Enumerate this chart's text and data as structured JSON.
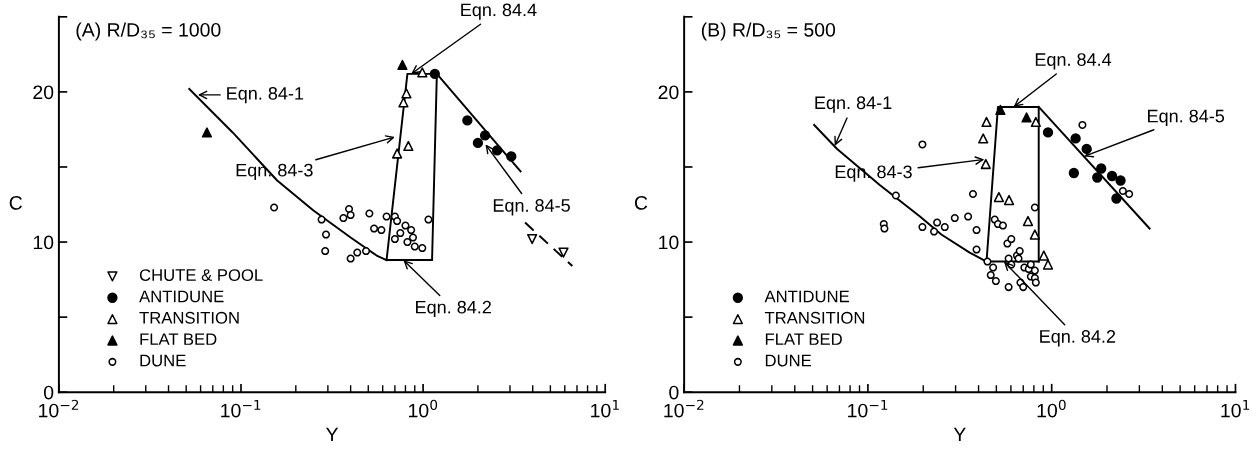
{
  "chart_data": [
    {
      "type": "scatter",
      "title": "(A) R/D₃₅ = 1000",
      "xlabel": "Y",
      "ylabel": "C",
      "log": "x",
      "xlim": [
        0.01,
        10
      ],
      "ylim": [
        0,
        25
      ],
      "xticks": [
        {
          "value": 0.01,
          "label": "10$^{−2}$"
        },
        {
          "value": 0.1,
          "label": "10$^{−1}$"
        },
        {
          "value": 1,
          "label": "10$^{0}$"
        },
        {
          "value": 10,
          "label": "10$^{1}$"
        }
      ],
      "yticks": [
        0,
        {
          "value": 5,
          "label": null
        },
        10,
        {
          "value": 15,
          "label": null
        },
        20,
        {
          "value": 25,
          "label": null
        }
      ],
      "grid": false,
      "legend": "lower left",
      "series": [
        {
          "name": "CHUTE & POOL",
          "marker": "triangle_down_open",
          "color": "#000000",
          "x": [
            3.97,
            5.9
          ],
          "values": [
            10.2,
            9.3
          ]
        },
        {
          "name": "ANTIDUNE",
          "marker": "circle",
          "color": "#000000",
          "x": [
            1.16,
            1.75,
            2.19,
            2.0,
            2.55,
            3.05
          ],
          "values": [
            21.2,
            18.1,
            17.1,
            16.6,
            16.1,
            15.7
          ]
        },
        {
          "name": "TRANSITION",
          "marker": "triangle_open",
          "color": "#000000",
          "x": [
            0.99,
            0.81,
            0.78,
            0.72,
            0.83
          ],
          "values": [
            21.3,
            19.9,
            19.3,
            15.9,
            16.4
          ]
        },
        {
          "name": "FLAT BED",
          "marker": "triangle",
          "color": "#000000",
          "x": [
            0.065,
            0.77
          ],
          "values": [
            17.3,
            21.8
          ]
        },
        {
          "name": "DUNE",
          "marker": "circle_open",
          "color": "#000000",
          "x": [
            0.152,
            0.277,
            0.293,
            0.29,
            0.365,
            0.392,
            0.4,
            0.4,
            0.435,
            0.486,
            0.507,
            0.538,
            0.59,
            0.63,
            0.7,
            0.72,
            0.7,
            0.75,
            0.8,
            0.86,
            0.88,
            0.82,
            0.9,
            0.99,
            1.07
          ],
          "values": [
            12.3,
            11.5,
            10.5,
            9.4,
            11.6,
            12.2,
            11.8,
            8.9,
            9.3,
            9.4,
            11.9,
            10.9,
            10.8,
            11.7,
            11.7,
            11.4,
            10.2,
            10.6,
            11.1,
            10.8,
            10.3,
            10.0,
            9.7,
            9.6,
            11.5
          ]
        },
        {
          "type": "line",
          "marker": "none",
          "line_style": "solid",
          "color": "#000000",
          "x": [
            0.052,
            0.09,
            0.158,
            0.25,
            0.4,
            0.556,
            0.63,
            1.12
          ],
          "values": [
            20.2,
            17.3,
            14.1,
            12.1,
            10.3,
            9.1,
            8.8,
            8.8
          ]
        },
        {
          "type": "line",
          "marker": "none",
          "line_style": "solid",
          "color": "#000000",
          "x": [
            0.63,
            0.82,
            1.19,
            1.12
          ],
          "values": [
            8.8,
            21.2,
            21.2,
            8.8
          ]
        },
        {
          "type": "line",
          "marker": "none",
          "line_style": "solid",
          "color": "#000000",
          "x": [
            1.19,
            3.43
          ],
          "values": [
            21.2,
            14.7
          ]
        },
        {
          "type": "line",
          "marker": "none",
          "line_style": "dashed",
          "color": "#000000",
          "x": [
            3.63,
            6.6
          ],
          "values": [
            11.3,
            8.4
          ]
        }
      ],
      "annotations": [
        {
          "text": "Eqn. 84-1",
          "x": 0.058,
          "y": 19.8
        },
        {
          "text": "Eqn. 84-3",
          "x": 0.7,
          "y": 17.0
        },
        {
          "text": "Eqn. 84.4",
          "x": 0.86,
          "y": 21.2
        },
        {
          "text": "Eqn. 84-5",
          "x": 2.2,
          "y": 16.5
        },
        {
          "text": "Eqn. 84.2",
          "x": 0.78,
          "y": 8.8
        }
      ]
    },
    {
      "type": "scatter",
      "title": "(B) R/D₃₅ = 500",
      "xlabel": "Y",
      "ylabel": "C",
      "log": "x",
      "xlim": [
        0.01,
        10
      ],
      "ylim": [
        0,
        25
      ],
      "xticks": [
        {
          "value": 0.01,
          "label": "10$^{−2}$"
        },
        {
          "value": 0.1,
          "label": "10$^{−1}$"
        },
        {
          "value": 1,
          "label": "10$^{0}$"
        },
        {
          "value": 10,
          "label": "10$^{1}$"
        }
      ],
      "yticks": [
        0,
        {
          "value": 5,
          "label": null
        },
        10,
        {
          "value": 15,
          "label": null
        },
        20,
        {
          "value": 25,
          "label": null
        }
      ],
      "grid": false,
      "legend": "lower left",
      "series": [
        {
          "name": "ANTIDUNE",
          "marker": "circle",
          "color": "#000000",
          "x": [
            0.955,
            1.35,
            1.55,
            1.32,
            1.86,
            1.77,
            2.13,
            2.37,
            2.25
          ],
          "values": [
            17.3,
            16.9,
            16.2,
            14.6,
            14.9,
            14.3,
            14.4,
            14.1,
            12.9
          ]
        },
        {
          "name": "TRANSITION",
          "marker": "triangle_open",
          "color": "#000000",
          "x": [
            0.442,
            0.424,
            0.438,
            0.516,
            0.586,
            0.743,
            0.81,
            0.906,
            0.955,
            0.82
          ],
          "values": [
            18.0,
            16.9,
            15.2,
            13.0,
            12.8,
            11.4,
            10.5,
            9.1,
            8.5,
            18.0
          ]
        },
        {
          "name": "FLAT BED",
          "marker": "triangle",
          "color": "#000000",
          "x": [
            0.526,
            0.73
          ],
          "values": [
            18.8,
            18.3
          ]
        },
        {
          "name": "DUNE",
          "marker": "circle_open",
          "color": "#000000",
          "x": [
            0.122,
            0.123,
            0.198,
            0.142,
            0.198,
            0.229,
            0.238,
            0.262,
            0.297,
            0.351,
            0.373,
            0.39,
            0.39,
            0.447,
            0.48,
            0.466,
            0.497,
            0.49,
            0.51,
            0.543,
            0.574,
            0.603,
            0.583,
            0.603,
            0.583,
            0.647,
            0.67,
            0.66,
            0.676,
            0.7,
            0.71,
            0.75,
            0.77,
            0.77,
            0.81,
            0.81,
            0.82,
            0.81,
            2.44,
            2.64,
            1.47
          ],
          "values": [
            11.2,
            10.9,
            16.5,
            13.1,
            11.0,
            10.7,
            11.3,
            11.0,
            11.6,
            11.7,
            13.2,
            10.8,
            9.5,
            8.7,
            8.3,
            7.8,
            7.4,
            11.5,
            11.2,
            11.1,
            9.9,
            10.2,
            8.9,
            8.5,
            7.0,
            9.1,
            9.4,
            8.9,
            7.3,
            7.0,
            8.3,
            8.2,
            8.5,
            7.7,
            8.1,
            7.6,
            7.3,
            12.3,
            13.4,
            13.2,
            17.8
          ]
        },
        {
          "type": "line",
          "marker": "none",
          "line_style": "solid",
          "color": "#000000",
          "x": [
            0.051,
            0.068,
            0.116,
            0.192,
            0.251,
            0.358,
            0.442,
            0.85
          ],
          "values": [
            17.8,
            16.2,
            13.8,
            11.7,
            10.5,
            9.3,
            8.7,
            8.7
          ]
        },
        {
          "type": "line",
          "marker": "none",
          "line_style": "solid",
          "color": "#000000",
          "x": [
            0.442,
            0.51,
            0.85,
            0.85
          ],
          "values": [
            8.7,
            19.0,
            19.0,
            8.7
          ]
        },
        {
          "type": "line",
          "marker": "none",
          "line_style": "solid",
          "color": "#000000",
          "x": [
            0.85,
            3.41
          ],
          "values": [
            19.0,
            10.9
          ]
        }
      ],
      "annotations": [
        {
          "text": "Eqn. 84-1",
          "x": 0.066,
          "y": 16.4
        },
        {
          "text": "Eqn. 84-3",
          "x": 0.43,
          "y": 15.5
        },
        {
          "text": "Eqn. 84.4",
          "x": 0.62,
          "y": 19.0
        },
        {
          "text": "Eqn. 84-5",
          "x": 1.5,
          "y": 15.7
        },
        {
          "text": "Eqn. 84.2",
          "x": 0.55,
          "y": 8.7
        }
      ]
    }
  ]
}
